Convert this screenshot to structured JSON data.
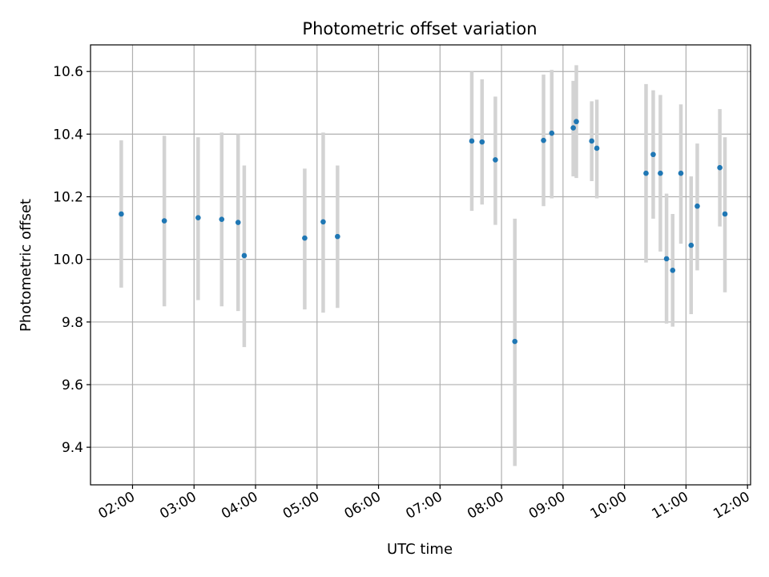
{
  "chart_data": {
    "type": "scatter",
    "title": "Photometric offset variation",
    "xlabel": "UTC time",
    "ylabel": "Photometric offset",
    "x_axis": {
      "kind": "time",
      "tick_labels": [
        "02:00",
        "03:00",
        "04:00",
        "05:00",
        "06:00",
        "07:00",
        "08:00",
        "09:00",
        "10:00",
        "11:00",
        "12:00"
      ],
      "range": [
        "01:19",
        "12:03"
      ]
    },
    "y_axis": {
      "ticks": [
        9.4,
        9.6,
        9.8,
        10.0,
        10.2,
        10.4,
        10.6
      ],
      "tick_labels": [
        "9.4",
        "9.6",
        "9.8",
        "10.0",
        "10.2",
        "10.4",
        "10.6"
      ],
      "ylim": [
        9.28,
        10.685
      ]
    },
    "grid": true,
    "colors": {
      "points": "#1f77b4",
      "errorbars": "#d3d3d3",
      "grid": "#b0b0b0"
    },
    "points": [
      {
        "t": "01:49",
        "y": 10.145,
        "lo": 9.91,
        "hi": 10.38
      },
      {
        "t": "02:31",
        "y": 10.123,
        "lo": 9.85,
        "hi": 10.395
      },
      {
        "t": "03:04",
        "y": 10.133,
        "lo": 9.87,
        "hi": 10.39
      },
      {
        "t": "03:27",
        "y": 10.128,
        "lo": 9.85,
        "hi": 10.405
      },
      {
        "t": "03:43",
        "y": 10.118,
        "lo": 9.835,
        "hi": 10.4
      },
      {
        "t": "03:49",
        "y": 10.012,
        "lo": 9.72,
        "hi": 10.3
      },
      {
        "t": "04:48",
        "y": 10.068,
        "lo": 9.84,
        "hi": 10.29
      },
      {
        "t": "05:06",
        "y": 10.12,
        "lo": 9.83,
        "hi": 10.405
      },
      {
        "t": "05:20",
        "y": 10.073,
        "lo": 9.845,
        "hi": 10.3
      },
      {
        "t": "07:31",
        "y": 10.378,
        "lo": 10.155,
        "hi": 10.6
      },
      {
        "t": "07:41",
        "y": 10.375,
        "lo": 10.175,
        "hi": 10.575
      },
      {
        "t": "07:54",
        "y": 10.318,
        "lo": 10.11,
        "hi": 10.52
      },
      {
        "t": "08:13",
        "y": 9.738,
        "lo": 9.34,
        "hi": 10.13
      },
      {
        "t": "08:41",
        "y": 10.38,
        "lo": 10.17,
        "hi": 10.59
      },
      {
        "t": "08:49",
        "y": 10.403,
        "lo": 10.195,
        "hi": 10.605
      },
      {
        "t": "09:10",
        "y": 10.42,
        "lo": 10.265,
        "hi": 10.57
      },
      {
        "t": "09:13",
        "y": 10.44,
        "lo": 10.26,
        "hi": 10.62
      },
      {
        "t": "09:28",
        "y": 10.378,
        "lo": 10.25,
        "hi": 10.505
      },
      {
        "t": "09:33",
        "y": 10.355,
        "lo": 10.195,
        "hi": 10.51
      },
      {
        "t": "10:21",
        "y": 10.275,
        "lo": 9.99,
        "hi": 10.56
      },
      {
        "t": "10:28",
        "y": 10.335,
        "lo": 10.13,
        "hi": 10.54
      },
      {
        "t": "10:35",
        "y": 10.275,
        "lo": 10.025,
        "hi": 10.525
      },
      {
        "t": "10:41",
        "y": 10.002,
        "lo": 9.795,
        "hi": 10.21
      },
      {
        "t": "10:47",
        "y": 9.965,
        "lo": 9.785,
        "hi": 10.145
      },
      {
        "t": "10:55",
        "y": 10.275,
        "lo": 10.05,
        "hi": 10.495
      },
      {
        "t": "11:05",
        "y": 10.045,
        "lo": 9.825,
        "hi": 10.265
      },
      {
        "t": "11:11",
        "y": 10.17,
        "lo": 9.965,
        "hi": 10.37
      },
      {
        "t": "11:33",
        "y": 10.293,
        "lo": 10.105,
        "hi": 10.48
      },
      {
        "t": "11:38",
        "y": 10.145,
        "lo": 9.895,
        "hi": 10.39
      }
    ]
  }
}
